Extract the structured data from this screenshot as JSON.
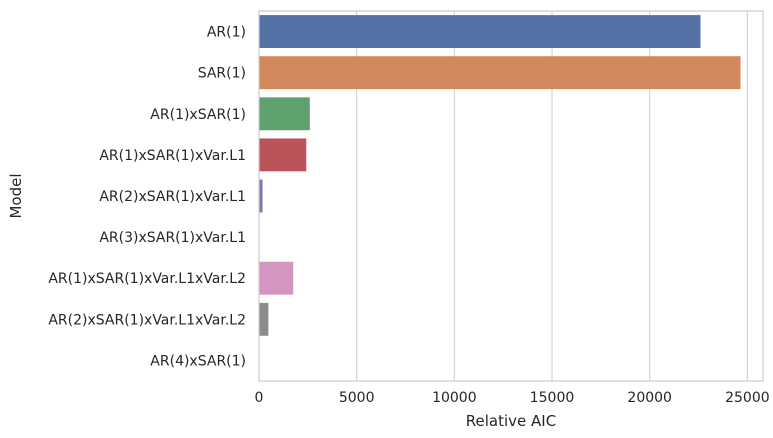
{
  "chart_data": {
    "type": "bar",
    "orientation": "horizontal",
    "categories": [
      "AR(1)",
      "SAR(1)",
      "AR(1)xSAR(1)",
      "AR(1)xSAR(1)xVar.L1",
      "AR(2)xSAR(1)xVar.L1",
      "AR(3)xSAR(1)xVar.L1",
      "AR(1)xSAR(1)xVar.L1xVar.L2",
      "AR(2)xSAR(1)xVar.L1xVar.L2",
      "AR(4)xSAR(1)"
    ],
    "values": [
      22600,
      24650,
      2600,
      2420,
      180,
      20,
      1750,
      480,
      0
    ],
    "colors": [
      "#5471a6",
      "#d1885c",
      "#5ea16f",
      "#bb5459",
      "#8573ab",
      "#917860",
      "#d496c1",
      "#8c8c8c",
      "#c4b468"
    ],
    "xlabel": "Relative AIC",
    "ylabel": "Model",
    "xlim": [
      0,
      25800
    ],
    "xticks": [
      0,
      5000,
      10000,
      15000,
      20000,
      25000
    ],
    "xtick_labels": [
      "0",
      "5000",
      "10000",
      "15000",
      "20000",
      "25000"
    ],
    "grid": "vertical"
  }
}
